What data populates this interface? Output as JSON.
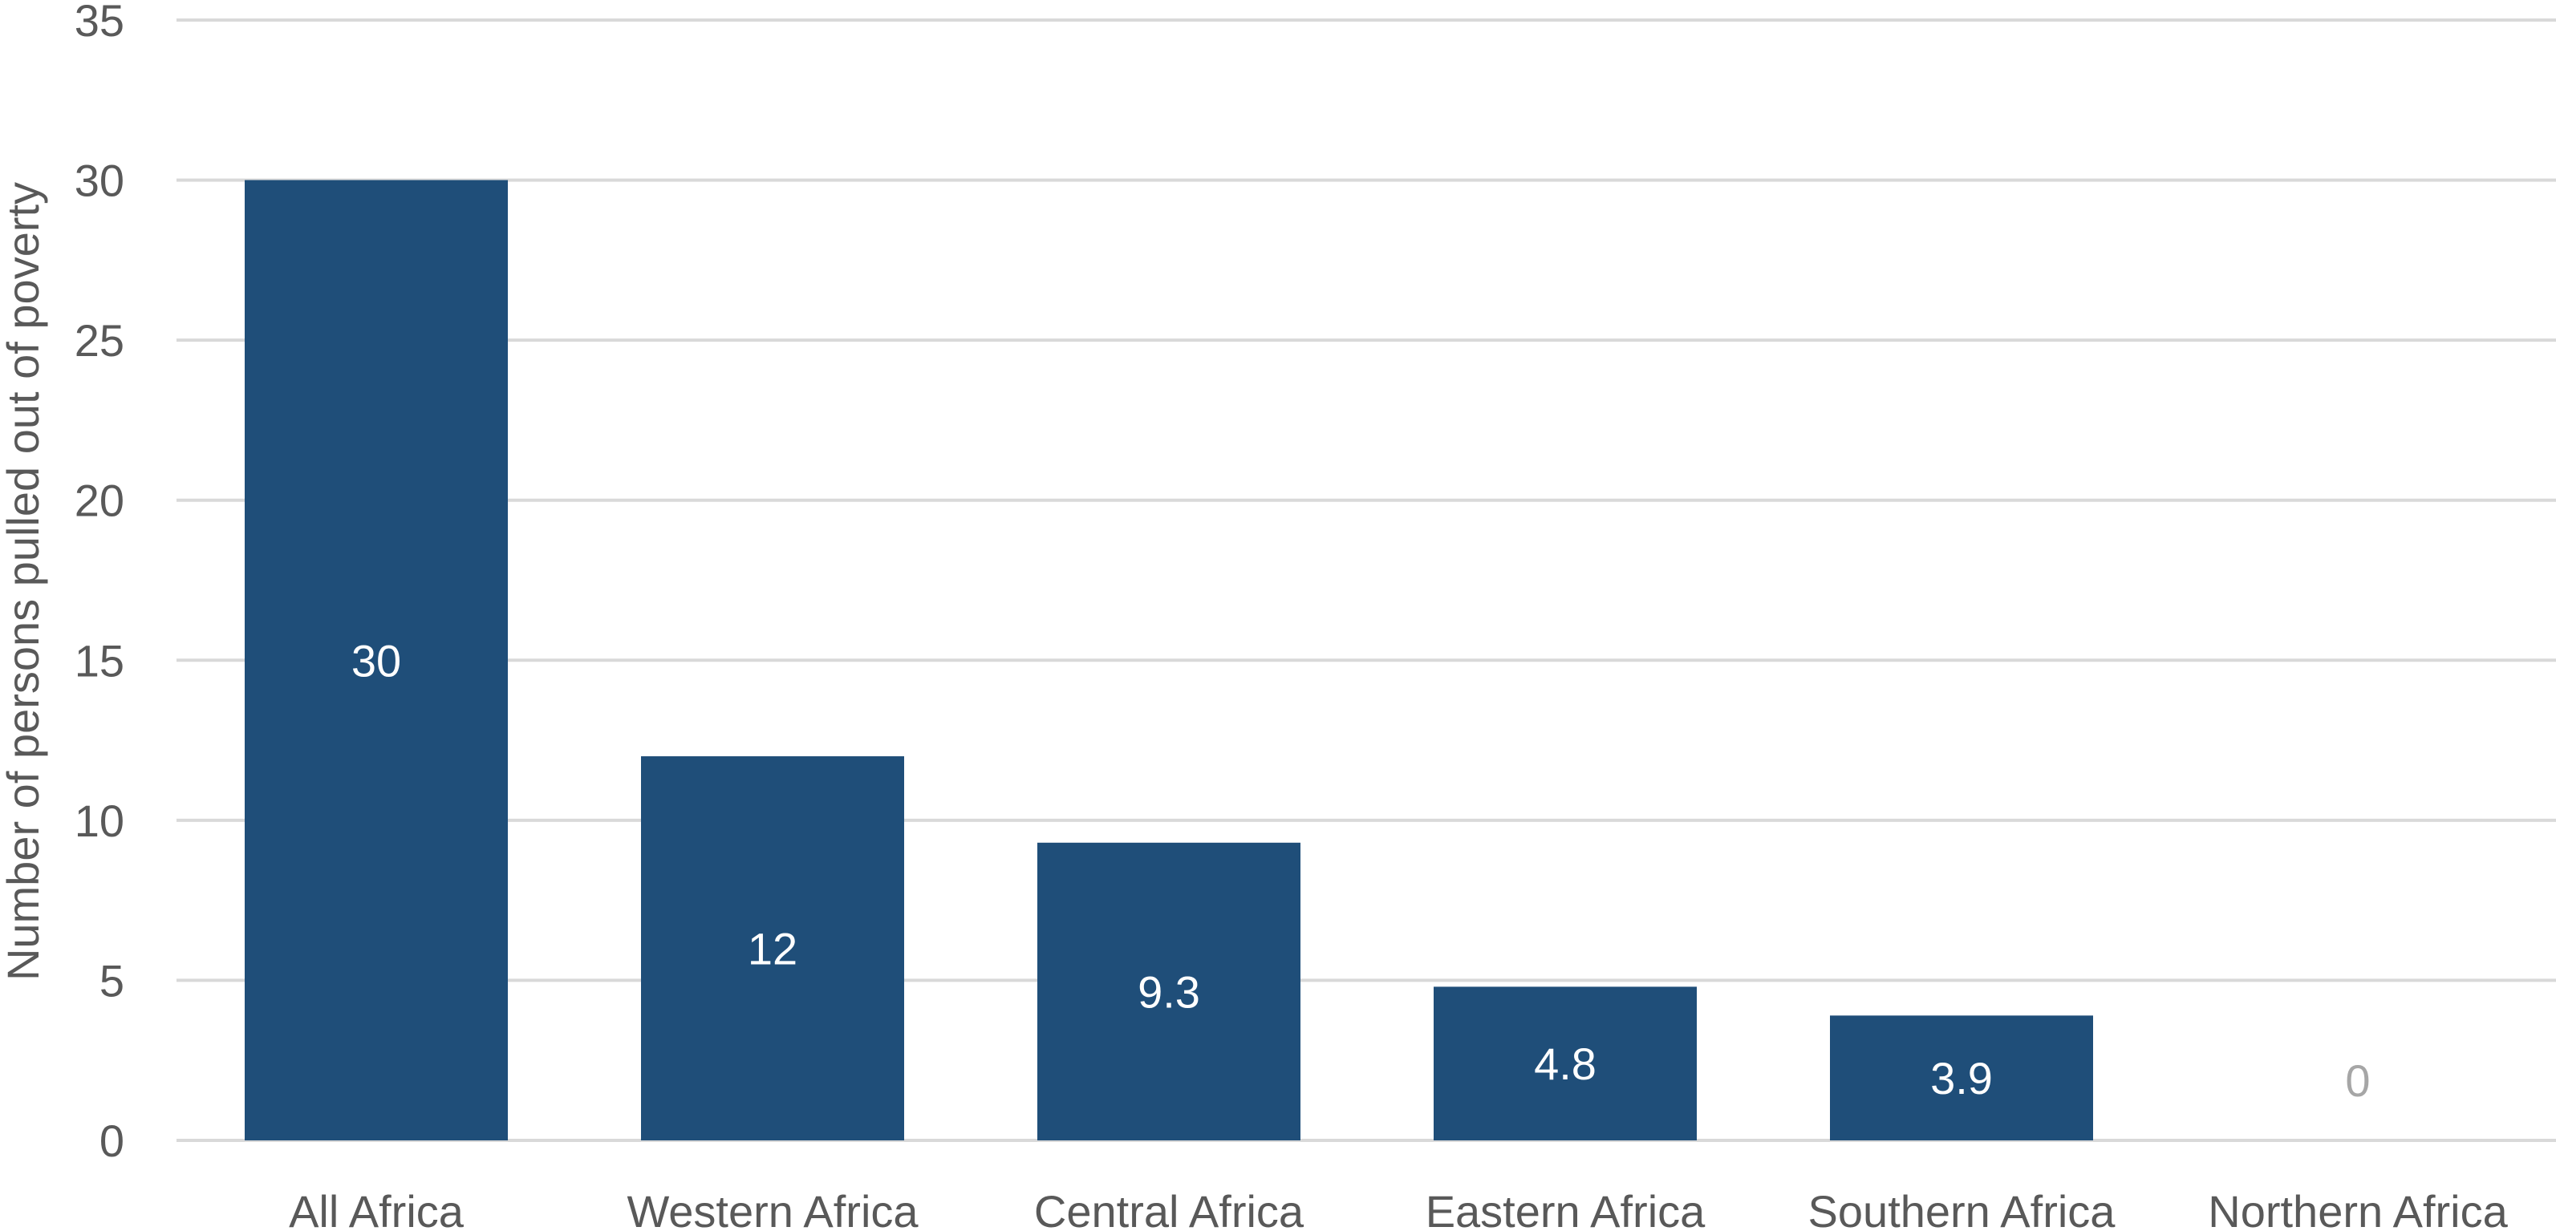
{
  "chart_data": {
    "type": "bar",
    "categories": [
      "All Africa",
      "Western Africa",
      "Central Africa",
      "Eastern Africa",
      "Southern Africa",
      "Northern Africa"
    ],
    "values": [
      30,
      12,
      9.3,
      4.8,
      3.9,
      0
    ],
    "data_labels": [
      "30",
      "12",
      "9.3",
      "4.8",
      "3.9",
      "0"
    ],
    "ylabel": "Number of persons pulled out of poverty",
    "ylim": [
      0,
      35
    ],
    "yticks": [
      0,
      5,
      10,
      15,
      20,
      25,
      30,
      35
    ],
    "ytick_labels": [
      "0",
      "5",
      "10",
      "15",
      "20",
      "25",
      "30",
      "35"
    ],
    "grid": true,
    "colors": {
      "bar": "#1f4e79",
      "label_inside": "#ffffff",
      "label_outside": "#a6a6a6",
      "text": "#595959",
      "grid": "#d9d9d9"
    }
  }
}
